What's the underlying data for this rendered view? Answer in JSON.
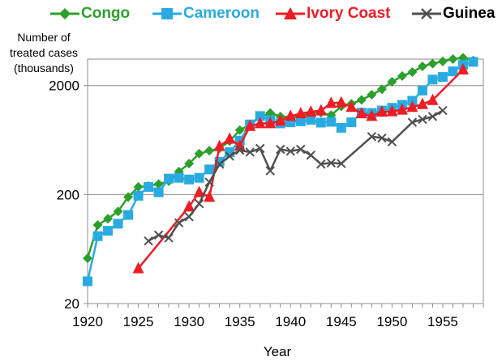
{
  "chart_data": {
    "type": "line",
    "xlabel": "Year",
    "ylabel_lines": [
      "Number of",
      "treated cases",
      "(thousands)"
    ],
    "xlim": [
      1920,
      1959
    ],
    "ylim": [
      20,
      3500
    ],
    "yscale": "log",
    "xticks": [
      1920,
      1925,
      1930,
      1935,
      1940,
      1945,
      1950,
      1955
    ],
    "yticks": [
      20,
      200,
      2000
    ],
    "grid": "horizontal",
    "legend_position": "top",
    "series": [
      {
        "name": "Congo",
        "color": "#2ca02c",
        "marker": "diamond",
        "x": [
          1920,
          1921,
          1922,
          1923,
          1924,
          1925,
          1926,
          1927,
          1928,
          1929,
          1930,
          1931,
          1932,
          1933,
          1934,
          1935,
          1936,
          1937,
          1938,
          1939,
          1940,
          1941,
          1942,
          1943,
          1944,
          1945,
          1946,
          1947,
          1948,
          1949,
          1950,
          1951,
          1952,
          1953,
          1954,
          1955,
          1956,
          1957,
          1958
        ],
        "y": [
          52,
          105,
          120,
          140,
          190,
          235,
          240,
          250,
          265,
          325,
          385,
          475,
          505,
          530,
          620,
          780,
          880,
          1020,
          1120,
          1040,
          1030,
          1060,
          1120,
          1130,
          1070,
          1290,
          1360,
          1480,
          1650,
          1850,
          2170,
          2450,
          2660,
          3000,
          3180,
          3330,
          3500,
          3600,
          3400
        ]
      },
      {
        "name": "Cameroon",
        "color": "#29abe2",
        "marker": "square",
        "x": [
          1920,
          1921,
          1922,
          1923,
          1924,
          1925,
          1926,
          1927,
          1928,
          1929,
          1930,
          1931,
          1932,
          1933,
          1934,
          1935,
          1936,
          1937,
          1938,
          1939,
          1940,
          1941,
          1942,
          1943,
          1944,
          1945,
          1946,
          1947,
          1948,
          1949,
          1950,
          1951,
          1952,
          1953,
          1954,
          1955,
          1956,
          1957,
          1958
        ],
        "y": [
          32,
          83,
          93,
          108,
          130,
          195,
          235,
          210,
          280,
          285,
          275,
          285,
          340,
          400,
          490,
          625,
          880,
          1050,
          960,
          900,
          920,
          940,
          970,
          915,
          930,
          820,
          920,
          1130,
          1120,
          1180,
          1250,
          1330,
          1450,
          1800,
          2270,
          2400,
          2700,
          3100,
          3300
        ]
      },
      {
        "name": "Ivory Coast",
        "color": "#ee1c25",
        "marker": "triangle",
        "x": [
          1925,
          1930,
          1931,
          1932,
          1933,
          1934,
          1935,
          1936,
          1937,
          1938,
          1939,
          1940,
          1941,
          1942,
          1943,
          1944,
          1945,
          1946,
          1947,
          1948,
          1949,
          1950,
          1951,
          1952,
          1953,
          1954,
          1957
        ],
        "y": [
          42,
          155,
          210,
          190,
          555,
          650,
          560,
          850,
          900,
          900,
          950,
          1050,
          1110,
          1150,
          1180,
          1380,
          1400,
          1270,
          1110,
          1050,
          1150,
          1160,
          1200,
          1270,
          1350,
          1470,
          2800
        ]
      },
      {
        "name": "Guinea",
        "color": "#505050",
        "marker": "x",
        "x": [
          1926,
          1927,
          1928,
          1929,
          1930,
          1931,
          1932,
          1933,
          1934,
          1935,
          1936,
          1937,
          1938,
          1939,
          1940,
          1941,
          1942,
          1943,
          1944,
          1945,
          1948,
          1949,
          1950,
          1952,
          1953,
          1954,
          1955
        ],
        "y": [
          75,
          85,
          80,
          110,
          125,
          165,
          260,
          380,
          450,
          510,
          490,
          530,
          330,
          520,
          500,
          520,
          460,
          380,
          390,
          385,
          680,
          660,
          610,
          920,
          980,
          1040,
          1180
        ]
      }
    ]
  }
}
